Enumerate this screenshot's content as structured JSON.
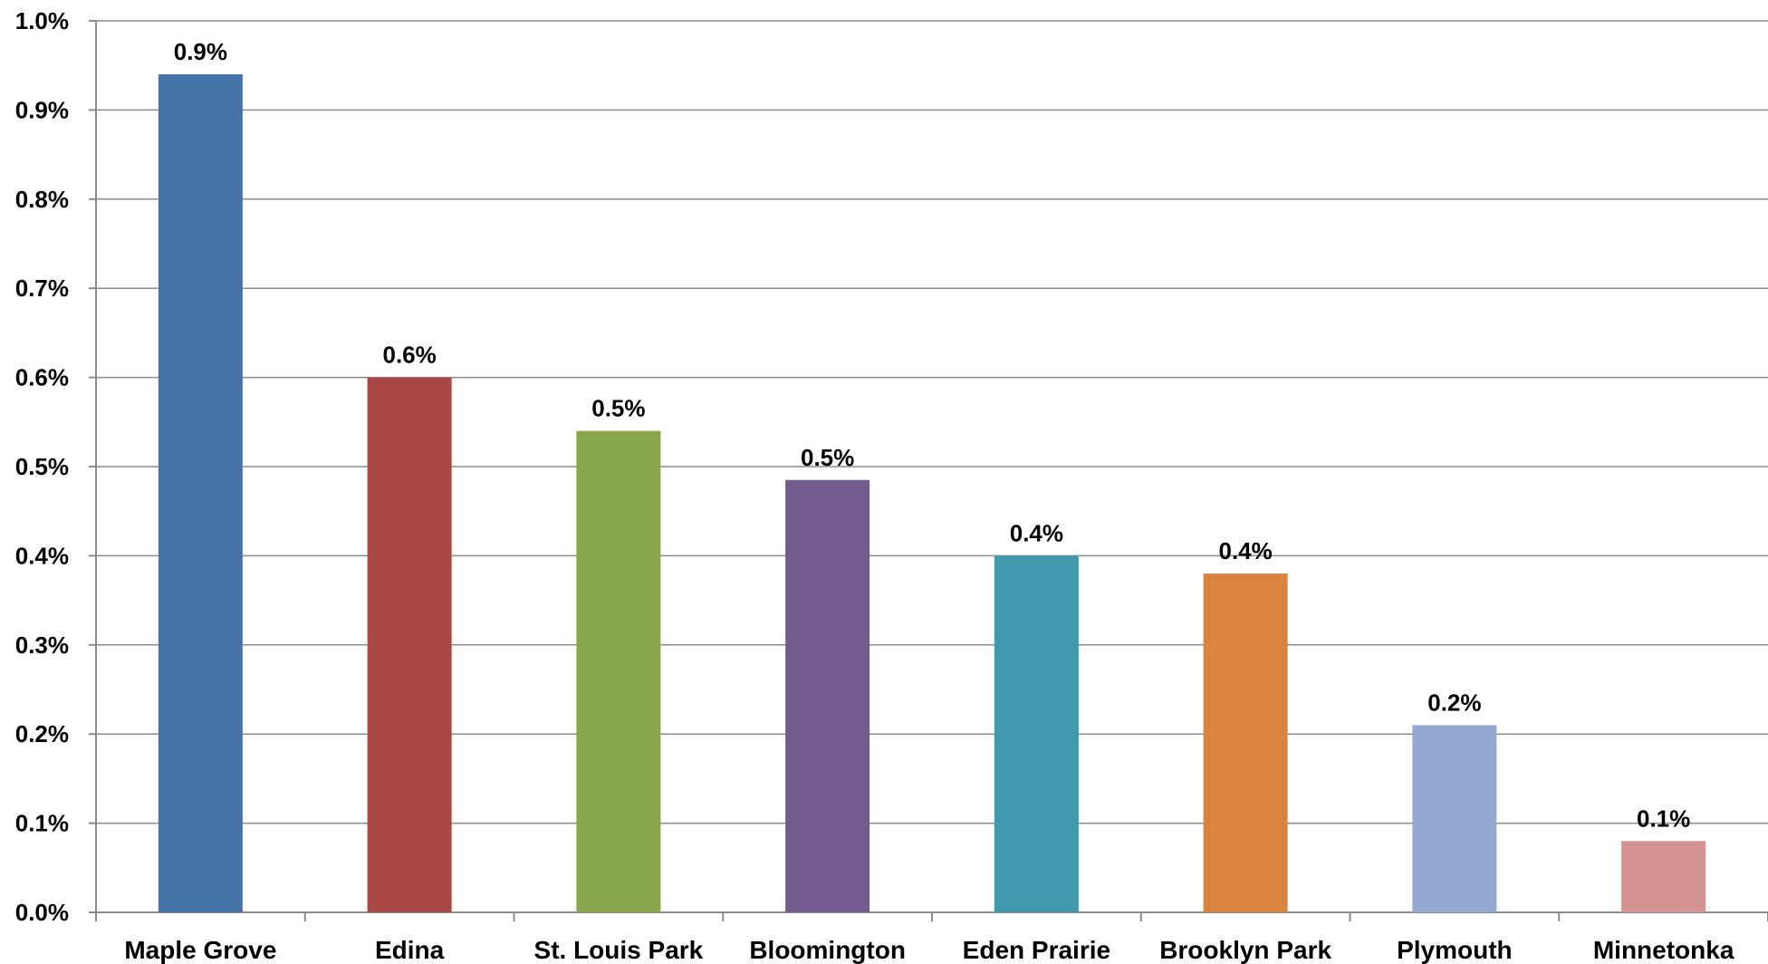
{
  "chart_data": {
    "type": "bar",
    "title": "",
    "xlabel": "",
    "ylabel": "",
    "categories": [
      "Maple Grove",
      "Edina",
      "St. Louis Park",
      "Bloomington",
      "Eden Prairie",
      "Brooklyn Park",
      "Plymouth",
      "Minnetonka"
    ],
    "values": [
      0.94,
      0.6,
      0.54,
      0.485,
      0.4,
      0.38,
      0.21,
      0.08
    ],
    "data_labels": [
      "0.9%",
      "0.6%",
      "0.5%",
      "0.5%",
      "0.4%",
      "0.4%",
      "0.2%",
      "0.1%"
    ],
    "colors": [
      "#4674a8",
      "#a94745",
      "#89a64e",
      "#735a8f",
      "#4199af",
      "#db843f",
      "#95a9d0",
      "#d49392"
    ],
    "ylim": [
      0,
      1.0
    ],
    "yticks": [
      0.0,
      0.1,
      0.2,
      0.3,
      0.4,
      0.5,
      0.6,
      0.7,
      0.8,
      0.9,
      1.0
    ],
    "ytick_labels": [
      "0.0%",
      "0.1%",
      "0.2%",
      "0.3%",
      "0.4%",
      "0.5%",
      "0.6%",
      "0.7%",
      "0.8%",
      "0.9%",
      "1.0%"
    ],
    "grid": true,
    "legend": "none"
  }
}
